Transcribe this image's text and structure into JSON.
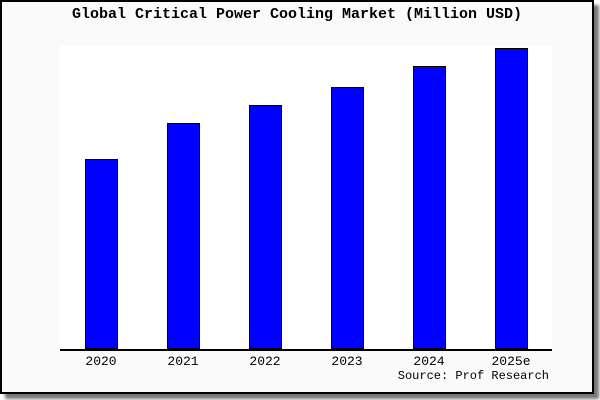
{
  "title": "Global Critical Power Cooling Market (Million USD)",
  "source_caption": "Source: Prof Research",
  "colors": {
    "bar_fill": "#0000ff",
    "bar_border": "#000000",
    "canvas_background": "#fafafa",
    "plot_background": "#ffffff",
    "axis_line": "#000000",
    "frame_border": "#000000",
    "frame_shadow": "#777777",
    "text": "#000000"
  },
  "chart_data": {
    "type": "bar",
    "title": "Global Critical Power Cooling Market (Million USD)",
    "categories": [
      "2020",
      "2021",
      "2022",
      "2023",
      "2024",
      "2025e"
    ],
    "values": [
      63,
      75,
      81,
      87,
      94,
      100
    ],
    "value_note": "no y-axis scale shown; values estimated as percent of tallest bar (2025e = 100)",
    "xlabel": "",
    "ylabel": "",
    "ylim": [
      0,
      100
    ],
    "grid": false,
    "legend": false,
    "annotations": [
      "Source: Prof Research"
    ]
  }
}
